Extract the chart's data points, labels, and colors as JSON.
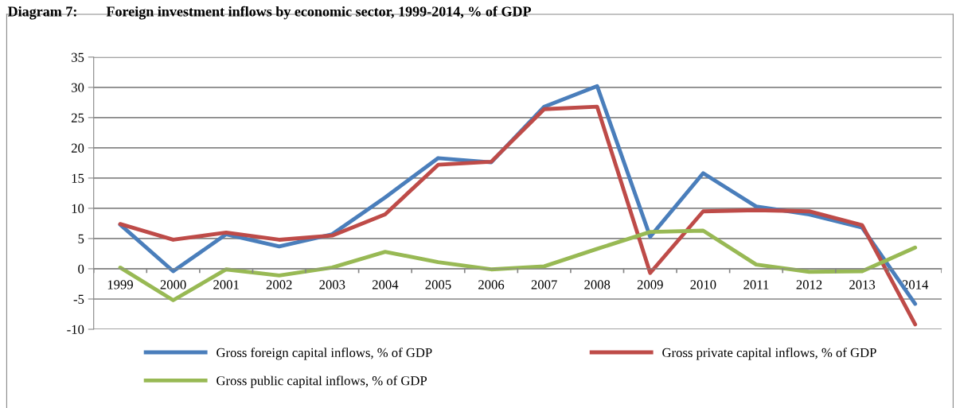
{
  "chart_data": {
    "type": "line",
    "title": "Diagram 7:        Foreign investment inflows by economic sector, 1999-2014, % of GDP",
    "categories": [
      "1999",
      "2000",
      "2001",
      "2002",
      "2003",
      "2004",
      "2005",
      "2006",
      "2007",
      "2008",
      "2009",
      "2010",
      "2011",
      "2012",
      "2013",
      "2014"
    ],
    "series": [
      {
        "name": "Gross foreign capital inflows, % of GDP",
        "color": "#4a7ebb",
        "values": [
          7.3,
          -0.4,
          5.7,
          3.7,
          5.7,
          11.8,
          18.3,
          17.6,
          26.8,
          30.2,
          5.3,
          15.8,
          10.3,
          9.0,
          6.8,
          -5.8
        ]
      },
      {
        "name": "Gross private capital inflows, % of GDP",
        "color": "#be4b48",
        "values": [
          7.4,
          4.8,
          6.0,
          4.8,
          5.5,
          9.0,
          17.2,
          17.7,
          26.4,
          26.8,
          -0.7,
          9.5,
          9.7,
          9.5,
          7.2,
          -9.2
        ]
      },
      {
        "name": "Gross public capital inflows, % of GDP",
        "color": "#98b954",
        "values": [
          0.2,
          -5.2,
          -0.1,
          -1.1,
          0.2,
          2.8,
          1.1,
          -0.1,
          0.4,
          3.3,
          6.1,
          6.3,
          0.7,
          -0.5,
          -0.4,
          3.5
        ]
      }
    ],
    "ylim": [
      -10,
      35
    ],
    "yticks": [
      -10,
      -5,
      0,
      5,
      10,
      15,
      20,
      25,
      30,
      35
    ],
    "grid": "y",
    "legend": "bottom",
    "marker": "none",
    "line_style": "solid"
  }
}
